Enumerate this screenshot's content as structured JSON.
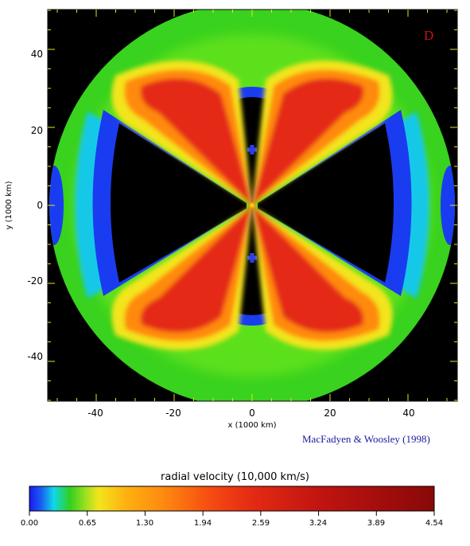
{
  "chart_data": {
    "type": "heatmap",
    "panel_label": "D",
    "xlabel": "x (1000 km)",
    "ylabel": "y (1000 km)",
    "xlim": [
      -53,
      53
    ],
    "ylim": [
      -52,
      52
    ],
    "x_ticks": [
      "-40",
      "-20",
      "0",
      "20",
      "40"
    ],
    "y_ticks": [
      "-40",
      "-20",
      "0",
      "20",
      "40"
    ],
    "domain_radius": 53,
    "colorbar": {
      "title": "radial velocity (10,000 km/s)",
      "min": 0.0,
      "max": 4.54,
      "tick_labels": [
        "0.00",
        "0.65",
        "1.30",
        "1.94",
        "2.59",
        "3.24",
        "3.89",
        "4.54"
      ]
    },
    "credit": "MacFadyen & Woosley (1998)",
    "colors": {
      "background": "#000000",
      "panel_label": "#cc1010",
      "credit": "#1a1aa0"
    }
  }
}
